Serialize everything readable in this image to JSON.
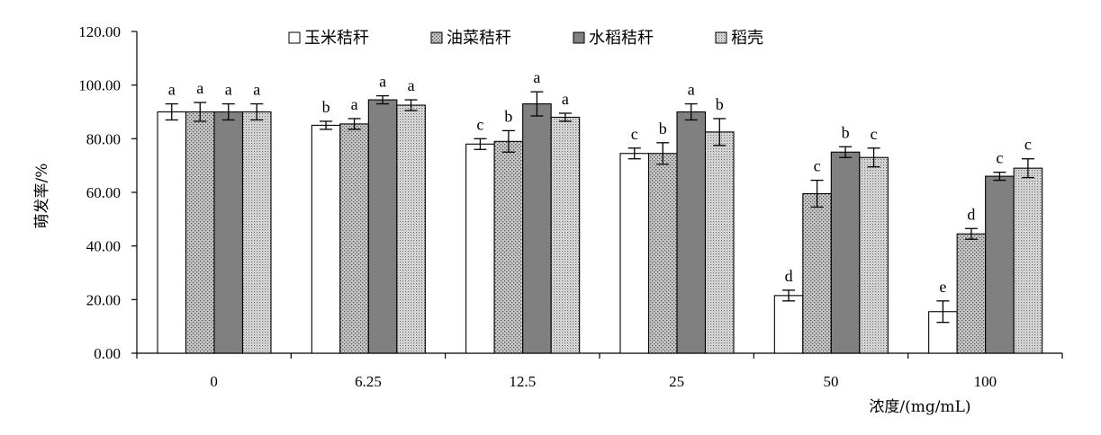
{
  "chart_data": {
    "type": "bar",
    "title": "",
    "xlabel": "浓度/(mg/mL)",
    "ylabel": "萌发率/%",
    "ylim": [
      0,
      120
    ],
    "ytick_step": 20,
    "ytick_labels": [
      "0.00",
      "20.00",
      "40.00",
      "60.00",
      "80.00",
      "100.00",
      "120.00"
    ],
    "categories": [
      "0",
      "6.25",
      "12.5",
      "25",
      "50",
      "100"
    ],
    "legend_position": "top",
    "grid": false,
    "series": [
      {
        "name": "玉米秸秆",
        "fill": "white",
        "values": [
          90.0,
          85.0,
          78.0,
          74.5,
          21.5,
          15.5
        ],
        "errors": [
          3.0,
          1.5,
          2.0,
          2.0,
          2.0,
          4.0
        ],
        "letters": [
          "a",
          "b",
          "c",
          "c",
          "d",
          "e"
        ]
      },
      {
        "name": "油菜秸秆",
        "fill": "dots",
        "values": [
          90.0,
          85.5,
          79.0,
          74.5,
          59.5,
          44.5
        ],
        "errors": [
          3.5,
          2.0,
          4.0,
          4.0,
          5.0,
          2.0
        ],
        "letters": [
          "a",
          "a",
          "b",
          "b",
          "c",
          "d"
        ]
      },
      {
        "name": "水稻秸秆",
        "fill": "gray",
        "values": [
          90.0,
          94.5,
          93.0,
          90.0,
          75.0,
          66.0
        ],
        "errors": [
          3.0,
          1.5,
          4.5,
          3.0,
          2.0,
          1.5
        ],
        "letters": [
          "a",
          "a",
          "a",
          "a",
          "b",
          "c"
        ]
      },
      {
        "name": "稻壳",
        "fill": "fine-dots",
        "values": [
          90.0,
          92.5,
          88.0,
          82.5,
          73.0,
          69.0
        ],
        "errors": [
          3.0,
          2.0,
          1.5,
          5.0,
          3.5,
          3.5
        ],
        "letters": [
          "a",
          "a",
          "a",
          "b",
          "c",
          "c"
        ]
      }
    ]
  }
}
